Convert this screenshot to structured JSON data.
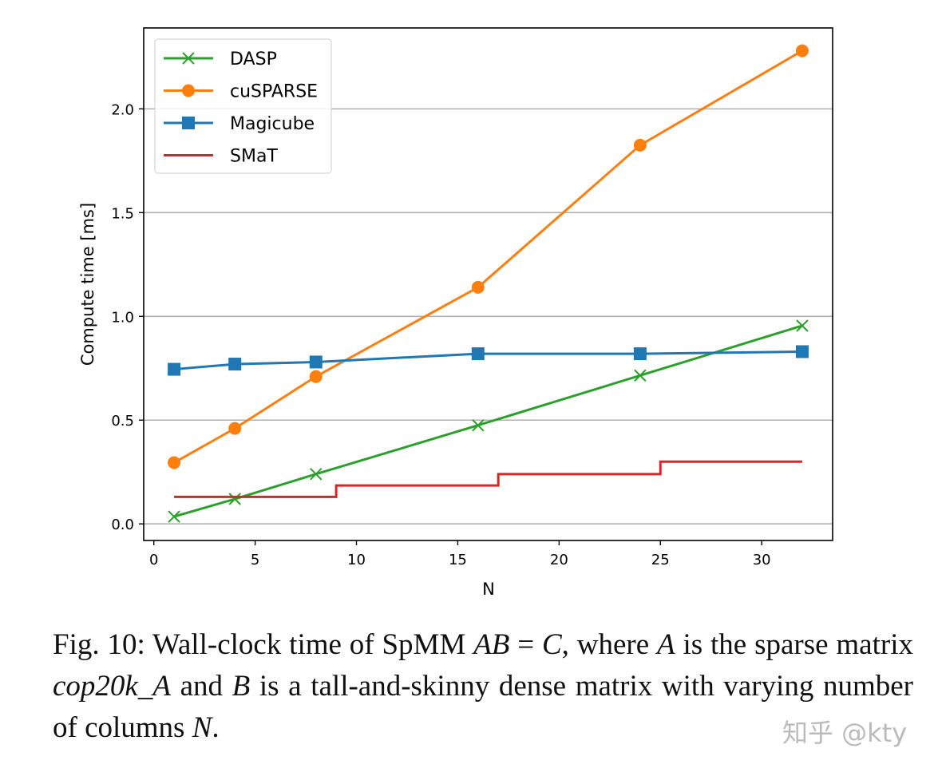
{
  "chart_data": {
    "type": "line",
    "xlabel": "N",
    "ylabel": "Compute time [ms]",
    "xlim": [
      -0.5,
      33.5
    ],
    "ylim": [
      -0.08,
      2.39
    ],
    "xticks": [
      0,
      5,
      10,
      15,
      20,
      25,
      30
    ],
    "xtick_labels": [
      "0",
      "5",
      "10",
      "15",
      "20",
      "25",
      "30"
    ],
    "yticks": [
      0.0,
      0.5,
      1.0,
      1.5,
      2.0
    ],
    "ytick_labels": [
      "0.0",
      "0.5",
      "1.0",
      "1.5",
      "2.0"
    ],
    "grid": "horizontal",
    "legend_position": "top-left",
    "series": [
      {
        "name": "DASP",
        "color": "#2ca02c",
        "marker": "x",
        "x": [
          1,
          4,
          8,
          16,
          24,
          32
        ],
        "y": [
          0.035,
          0.12,
          0.24,
          0.475,
          0.715,
          0.955
        ]
      },
      {
        "name": "cuSPARSE",
        "color": "#ff7f0e",
        "marker": "circle",
        "x": [
          1,
          4,
          8,
          16,
          24,
          32
        ],
        "y": [
          0.295,
          0.46,
          0.71,
          1.14,
          1.825,
          2.28
        ]
      },
      {
        "name": "Magicube",
        "color": "#1f77b4",
        "marker": "square",
        "x": [
          1,
          4,
          8,
          16,
          24,
          32
        ],
        "y": [
          0.745,
          0.77,
          0.78,
          0.82,
          0.82,
          0.83
        ]
      },
      {
        "name": "SMaT",
        "color": "#d62728",
        "marker": "none",
        "drawstyle": "steps-post",
        "x": [
          1,
          9,
          17,
          25,
          32
        ],
        "y": [
          0.13,
          0.185,
          0.24,
          0.3,
          0.3
        ]
      }
    ]
  },
  "caption": {
    "prefix": "Fig. 10: Wall-clock time of SpMM ",
    "math1": "AB",
    "eq": " = ",
    "math2": "C",
    "mid1": ", where ",
    "math3": "A",
    "mid2": " is the sparse matrix ",
    "matrix_name": "cop20k_A",
    "mid3": " and ",
    "math4": "B",
    "mid4": " is a tall-and-skinny dense matrix with varying number of columns ",
    "math5": "N",
    "end": "."
  },
  "watermark": "知乎 @kty"
}
